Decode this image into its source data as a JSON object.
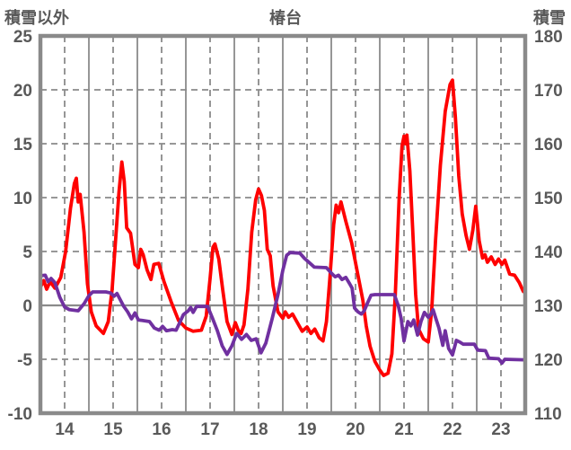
{
  "titles": {
    "left": "積雪以外",
    "center": "椿台",
    "right": "積雪"
  },
  "colors": {
    "temperature_line": "#ff0000",
    "snow_line": "#7030a0",
    "grid": "#8a8a8a",
    "border": "#8a8a8a",
    "zero_line": "#8a8a8a",
    "tick_text": "#595959",
    "background": "#ffffff"
  },
  "chart_data": {
    "type": "line",
    "title": "椿台",
    "x_axis": {
      "ticks": [
        14,
        15,
        16,
        17,
        18,
        19,
        20,
        21,
        22,
        23
      ],
      "range": [
        14,
        24
      ]
    },
    "left_axis": {
      "title": "積雪以外",
      "ticks": [
        25,
        20,
        15,
        10,
        5,
        0,
        -5,
        -10
      ],
      "range": [
        -10,
        25
      ]
    },
    "right_axis": {
      "title": "積雪",
      "ticks": [
        180,
        170,
        160,
        150,
        140,
        130,
        120,
        110
      ],
      "range": [
        110,
        180
      ]
    },
    "grid": {
      "horizontal_dashed": [
        20,
        15,
        10,
        5,
        -5
      ],
      "horizontal_solid": [
        0
      ],
      "vertical_solid": "day-boundaries",
      "vertical_dashed": "day-midpoints"
    },
    "legend": "none",
    "series": [
      {
        "name": "積雪以外",
        "axis": "left",
        "color": "#ff0000",
        "points": [
          [
            14.0,
            1.7
          ],
          [
            14.07,
            2.3
          ],
          [
            14.13,
            1.5
          ],
          [
            14.2,
            2.2
          ],
          [
            14.3,
            1.6
          ],
          [
            14.42,
            2.6
          ],
          [
            14.52,
            5.0
          ],
          [
            14.62,
            9.0
          ],
          [
            14.7,
            11.3
          ],
          [
            14.74,
            11.8
          ],
          [
            14.78,
            9.6
          ],
          [
            14.82,
            10.3
          ],
          [
            14.9,
            6.8
          ],
          [
            14.97,
            2.0
          ],
          [
            15.05,
            -0.6
          ],
          [
            15.15,
            -1.9
          ],
          [
            15.3,
            -2.6
          ],
          [
            15.4,
            -1.5
          ],
          [
            15.48,
            1.5
          ],
          [
            15.55,
            6.0
          ],
          [
            15.62,
            10.5
          ],
          [
            15.68,
            13.3
          ],
          [
            15.73,
            11.5
          ],
          [
            15.78,
            7.2
          ],
          [
            15.86,
            6.7
          ],
          [
            15.95,
            3.8
          ],
          [
            16.02,
            3.5
          ],
          [
            16.07,
            5.2
          ],
          [
            16.12,
            4.7
          ],
          [
            16.2,
            3.3
          ],
          [
            16.28,
            2.4
          ],
          [
            16.34,
            3.8
          ],
          [
            16.44,
            3.9
          ],
          [
            16.55,
            2.2
          ],
          [
            16.7,
            0.3
          ],
          [
            16.85,
            -1.4
          ],
          [
            17.0,
            -2.1
          ],
          [
            17.15,
            -2.4
          ],
          [
            17.32,
            -2.3
          ],
          [
            17.42,
            -1.0
          ],
          [
            17.5,
            2.5
          ],
          [
            17.56,
            5.4
          ],
          [
            17.6,
            5.7
          ],
          [
            17.68,
            4.3
          ],
          [
            17.76,
            1.5
          ],
          [
            17.85,
            -1.5
          ],
          [
            17.95,
            -2.7
          ],
          [
            18.02,
            -1.6
          ],
          [
            18.08,
            -2.3
          ],
          [
            18.14,
            -2.6
          ],
          [
            18.2,
            -1.8
          ],
          [
            18.28,
            1.5
          ],
          [
            18.36,
            6.8
          ],
          [
            18.44,
            9.8
          ],
          [
            18.5,
            10.8
          ],
          [
            18.56,
            10.2
          ],
          [
            18.62,
            8.8
          ],
          [
            18.68,
            5.2
          ],
          [
            18.74,
            4.6
          ],
          [
            18.8,
            1.8
          ],
          [
            18.9,
            -0.6
          ],
          [
            19.0,
            -1.2
          ],
          [
            19.05,
            -0.6
          ],
          [
            19.12,
            -1.1
          ],
          [
            19.2,
            -0.8
          ],
          [
            19.3,
            -1.6
          ],
          [
            19.4,
            -2.4
          ],
          [
            19.5,
            -2.0
          ],
          [
            19.58,
            -2.6
          ],
          [
            19.66,
            -2.2
          ],
          [
            19.75,
            -3.0
          ],
          [
            19.83,
            -3.3
          ],
          [
            19.9,
            -1.5
          ],
          [
            19.97,
            2.5
          ],
          [
            20.05,
            7.5
          ],
          [
            20.1,
            9.3
          ],
          [
            20.15,
            8.6
          ],
          [
            20.2,
            9.6
          ],
          [
            20.3,
            7.8
          ],
          [
            20.42,
            5.8
          ],
          [
            20.55,
            2.8
          ],
          [
            20.65,
            0.5
          ],
          [
            20.72,
            -1.9
          ],
          [
            20.8,
            -3.8
          ],
          [
            20.9,
            -5.2
          ],
          [
            21.0,
            -6.0
          ],
          [
            21.08,
            -6.5
          ],
          [
            21.17,
            -6.3
          ],
          [
            21.25,
            -4.5
          ],
          [
            21.32,
            1.0
          ],
          [
            21.4,
            10.0
          ],
          [
            21.46,
            14.8
          ],
          [
            21.5,
            15.7
          ],
          [
            21.53,
            15.0
          ],
          [
            21.56,
            15.8
          ],
          [
            21.62,
            12.5
          ],
          [
            21.68,
            7.0
          ],
          [
            21.74,
            1.0
          ],
          [
            21.8,
            -2.2
          ],
          [
            21.9,
            -3.1
          ],
          [
            22.0,
            -3.4
          ],
          [
            22.07,
            -0.5
          ],
          [
            22.15,
            6.0
          ],
          [
            22.25,
            13.0
          ],
          [
            22.35,
            18.0
          ],
          [
            22.45,
            20.5
          ],
          [
            22.5,
            20.9
          ],
          [
            22.56,
            17.5
          ],
          [
            22.63,
            12.0
          ],
          [
            22.7,
            8.5
          ],
          [
            22.78,
            6.5
          ],
          [
            22.85,
            5.2
          ],
          [
            22.92,
            7.0
          ],
          [
            22.98,
            9.2
          ],
          [
            23.05,
            6.0
          ],
          [
            23.12,
            4.4
          ],
          [
            23.17,
            4.7
          ],
          [
            23.22,
            4.0
          ],
          [
            23.3,
            4.5
          ],
          [
            23.38,
            3.8
          ],
          [
            23.45,
            4.3
          ],
          [
            23.52,
            3.8
          ],
          [
            23.58,
            4.2
          ],
          [
            23.68,
            2.9
          ],
          [
            23.78,
            2.8
          ],
          [
            23.88,
            2.1
          ],
          [
            23.96,
            1.3
          ],
          [
            24.0,
            1.2
          ]
        ]
      },
      {
        "name": "積雪",
        "axis": "right",
        "color": "#7030a0",
        "points": [
          [
            14.0,
            135.5
          ],
          [
            14.1,
            135.6
          ],
          [
            14.16,
            134.4
          ],
          [
            14.22,
            135.0
          ],
          [
            14.3,
            134.2
          ],
          [
            14.4,
            131.5
          ],
          [
            14.5,
            129.7
          ],
          [
            14.6,
            129.2
          ],
          [
            14.78,
            129.0
          ],
          [
            14.9,
            130.3
          ],
          [
            15.0,
            131.8
          ],
          [
            15.08,
            132.5
          ],
          [
            15.35,
            132.5
          ],
          [
            15.45,
            132.3
          ],
          [
            15.52,
            131.7
          ],
          [
            15.58,
            132.2
          ],
          [
            15.65,
            131.0
          ],
          [
            15.72,
            129.8
          ],
          [
            15.8,
            128.8
          ],
          [
            15.88,
            127.5
          ],
          [
            15.95,
            128.6
          ],
          [
            16.02,
            127.3
          ],
          [
            16.1,
            127.2
          ],
          [
            16.25,
            127.0
          ],
          [
            16.35,
            125.8
          ],
          [
            16.45,
            125.4
          ],
          [
            16.52,
            126.1
          ],
          [
            16.6,
            125.3
          ],
          [
            16.72,
            125.5
          ],
          [
            16.8,
            125.4
          ],
          [
            16.88,
            126.9
          ],
          [
            16.95,
            128.3
          ],
          [
            17.05,
            129.0
          ],
          [
            17.1,
            129.6
          ],
          [
            17.15,
            128.7
          ],
          [
            17.22,
            129.8
          ],
          [
            17.45,
            129.8
          ],
          [
            17.55,
            127.6
          ],
          [
            17.65,
            125.3
          ],
          [
            17.75,
            122.5
          ],
          [
            17.85,
            120.9
          ],
          [
            17.95,
            122.5
          ],
          [
            18.05,
            124.8
          ],
          [
            18.15,
            123.7
          ],
          [
            18.25,
            124.6
          ],
          [
            18.35,
            123.5
          ],
          [
            18.45,
            123.8
          ],
          [
            18.55,
            121.2
          ],
          [
            18.65,
            123.0
          ],
          [
            18.78,
            127.5
          ],
          [
            18.9,
            132.0
          ],
          [
            19.0,
            136.5
          ],
          [
            19.08,
            139.3
          ],
          [
            19.15,
            139.8
          ],
          [
            19.35,
            139.7
          ],
          [
            19.45,
            138.7
          ],
          [
            19.55,
            137.9
          ],
          [
            19.65,
            137.1
          ],
          [
            19.9,
            137.0
          ],
          [
            20.0,
            136.0
          ],
          [
            20.08,
            135.3
          ],
          [
            20.15,
            135.6
          ],
          [
            20.22,
            134.8
          ],
          [
            20.3,
            135.2
          ],
          [
            20.38,
            134.0
          ],
          [
            20.43,
            133.2
          ],
          [
            20.48,
            129.5
          ],
          [
            20.55,
            128.8
          ],
          [
            20.62,
            128.4
          ],
          [
            20.68,
            129.0
          ],
          [
            20.75,
            130.5
          ],
          [
            20.82,
            131.9
          ],
          [
            20.9,
            132.0
          ],
          [
            21.3,
            132.0
          ],
          [
            21.38,
            130.0
          ],
          [
            21.44,
            127.6
          ],
          [
            21.5,
            123.4
          ],
          [
            21.58,
            127.0
          ],
          [
            21.64,
            126.2
          ],
          [
            21.7,
            127.3
          ],
          [
            21.78,
            124.5
          ],
          [
            21.85,
            127.0
          ],
          [
            21.92,
            128.7
          ],
          [
            22.0,
            127.8
          ],
          [
            22.05,
            128.3
          ],
          [
            22.1,
            129.2
          ],
          [
            22.16,
            127.5
          ],
          [
            22.22,
            125.8
          ],
          [
            22.3,
            122.6
          ],
          [
            22.35,
            125.3
          ],
          [
            22.42,
            122.0
          ],
          [
            22.5,
            120.8
          ],
          [
            22.58,
            123.5
          ],
          [
            22.65,
            123.2
          ],
          [
            22.72,
            122.8
          ],
          [
            22.95,
            122.8
          ],
          [
            23.02,
            121.7
          ],
          [
            23.18,
            121.6
          ],
          [
            23.25,
            120.2
          ],
          [
            23.45,
            120.1
          ],
          [
            23.52,
            119.3
          ],
          [
            23.58,
            120.0
          ],
          [
            23.98,
            119.9
          ],
          [
            24.0,
            120.0
          ]
        ]
      }
    ]
  }
}
